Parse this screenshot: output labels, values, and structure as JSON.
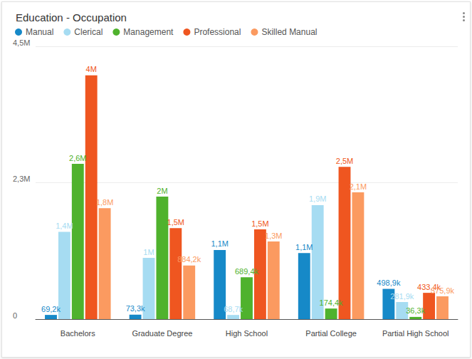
{
  "chart_data": {
    "type": "bar",
    "title": "Education - Occupation",
    "categories": [
      "Bachelors",
      "Graduate Degree",
      "High School",
      "Partial College",
      "Partial High School"
    ],
    "series": [
      {
        "name": "Manual",
        "color": "#1689c8",
        "values": [
          69200,
          73300,
          1140000,
          1090000,
          498900
        ],
        "value_labels": [
          "69,2k",
          "73,3k",
          "1,1M",
          "1,1M",
          "498,9k"
        ]
      },
      {
        "name": "Clerical",
        "color": "#a6dcf2",
        "values": [
          1440000,
          1010000,
          68700,
          1880000,
          281900
        ],
        "value_labels": [
          "1,4M",
          "1M",
          "68,7k",
          "1,9M",
          "281,9k"
        ]
      },
      {
        "name": "Management",
        "color": "#4fb22d",
        "values": [
          2560000,
          2020000,
          689400,
          174400,
          36300
        ],
        "value_labels": [
          "2,6M",
          "2M",
          "689,4k",
          "174,4k",
          "36,3k"
        ]
      },
      {
        "name": "Professional",
        "color": "#ef5620",
        "values": [
          4020000,
          1500000,
          1480000,
          2510000,
          433400
        ],
        "value_labels": [
          "4M",
          "1,5M",
          "1,5M",
          "2,5M",
          "433,4k"
        ]
      },
      {
        "name": "Skilled Manual",
        "color": "#fb9a60",
        "values": [
          1830000,
          884200,
          1280000,
          2090000,
          375900
        ],
        "value_labels": [
          "1,8M",
          "884,2k",
          "1,3M",
          "2,1M",
          "375,9k"
        ]
      }
    ],
    "ylim": [
      0,
      4500000
    ],
    "yticks": [
      0,
      {
        "value": 2250000,
        "label": "2,3M"
      },
      {
        "value": 4500000,
        "label": "4,5M"
      }
    ],
    "grid": true,
    "legend": "top-left",
    "data_labels": true
  }
}
